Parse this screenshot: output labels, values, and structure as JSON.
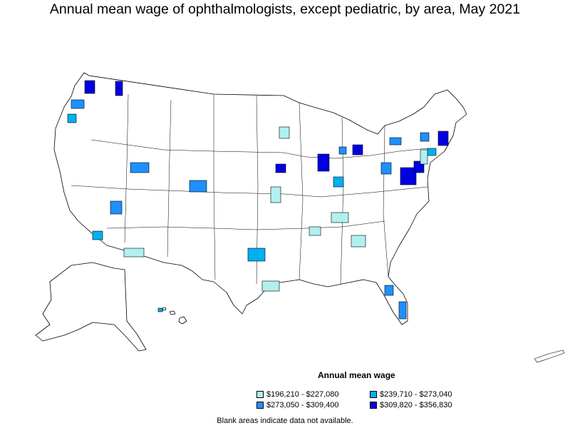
{
  "title": "Annual mean wage of ophthalmologists, except pediatric, by area, May 2021",
  "legend": {
    "title": "Annual mean wage",
    "items": [
      {
        "label": "$196,210 - $227,080",
        "color": "#b2f0f0"
      },
      {
        "label": "$239,710 - $273,040",
        "color": "#00b0f0"
      },
      {
        "label": "$273,050 - $309,400",
        "color": "#1e90ff"
      },
      {
        "label": "$309,820 - $356,830",
        "color": "#0000e0"
      }
    ]
  },
  "note": "Blank areas indicate data not available."
}
